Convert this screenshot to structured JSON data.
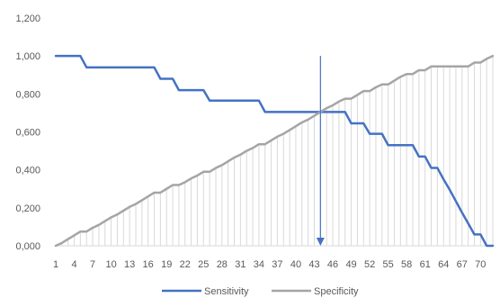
{
  "chart_data": {
    "type": "line",
    "title": "",
    "xlabel": "",
    "ylabel": "",
    "ylim": [
      0,
      1.2
    ],
    "y_ticks": [
      0,
      0.2,
      0.4,
      0.6,
      0.8,
      1.0,
      1.2
    ],
    "y_tick_labels": [
      "0,000",
      "0,200",
      "0,400",
      "0,600",
      "0,800",
      "1,000",
      "1,200"
    ],
    "x_ticks": [
      1,
      4,
      7,
      10,
      13,
      16,
      19,
      22,
      25,
      28,
      31,
      34,
      37,
      40,
      43,
      46,
      49,
      52,
      55,
      58,
      61,
      64,
      67,
      70
    ],
    "x_range": [
      1,
      72
    ],
    "grid": "vertical drop lines at every category",
    "legend": "bottom",
    "marker": {
      "x": 44,
      "label": ""
    },
    "colors": {
      "sensitivity": "#4472C4",
      "specificity": "#A5A5A5",
      "marker": "#4472C4",
      "droplines": "#D9D9D9"
    },
    "series": [
      {
        "name": "Sensitivity",
        "points": [
          [
            1,
            1.0
          ],
          [
            5,
            1.0
          ],
          [
            6,
            0.94
          ],
          [
            17,
            0.94
          ],
          [
            18,
            0.88
          ],
          [
            20,
            0.88
          ],
          [
            21,
            0.82
          ],
          [
            25,
            0.82
          ],
          [
            26,
            0.765
          ],
          [
            34,
            0.765
          ],
          [
            35,
            0.705
          ],
          [
            48,
            0.705
          ],
          [
            49,
            0.645
          ],
          [
            51,
            0.645
          ],
          [
            52,
            0.59
          ],
          [
            54,
            0.59
          ],
          [
            55,
            0.53
          ],
          [
            59,
            0.53
          ],
          [
            60,
            0.47
          ],
          [
            61,
            0.47
          ],
          [
            62,
            0.41
          ],
          [
            63,
            0.41
          ],
          [
            64,
            0.35
          ],
          [
            65,
            0.295
          ],
          [
            66,
            0.235
          ],
          [
            67,
            0.175
          ],
          [
            68,
            0.118
          ],
          [
            69,
            0.06
          ],
          [
            70,
            0.06
          ],
          [
            71,
            0.0
          ],
          [
            72,
            0.0
          ]
        ]
      },
      {
        "name": "Specificity",
        "points": [
          [
            1,
            0.0
          ],
          [
            2,
            0.015
          ],
          [
            3,
            0.035
          ],
          [
            4,
            0.055
          ],
          [
            5,
            0.075
          ],
          [
            6,
            0.075
          ],
          [
            7,
            0.095
          ],
          [
            8,
            0.11
          ],
          [
            9,
            0.13
          ],
          [
            10,
            0.15
          ],
          [
            11,
            0.165
          ],
          [
            12,
            0.185
          ],
          [
            13,
            0.205
          ],
          [
            14,
            0.22
          ],
          [
            15,
            0.24
          ],
          [
            16,
            0.26
          ],
          [
            17,
            0.28
          ],
          [
            18,
            0.28
          ],
          [
            19,
            0.3
          ],
          [
            20,
            0.32
          ],
          [
            21,
            0.32
          ],
          [
            22,
            0.335
          ],
          [
            23,
            0.355
          ],
          [
            24,
            0.37
          ],
          [
            25,
            0.39
          ],
          [
            26,
            0.39
          ],
          [
            27,
            0.41
          ],
          [
            28,
            0.425
          ],
          [
            29,
            0.445
          ],
          [
            30,
            0.465
          ],
          [
            31,
            0.48
          ],
          [
            32,
            0.5
          ],
          [
            33,
            0.515
          ],
          [
            34,
            0.535
          ],
          [
            35,
            0.535
          ],
          [
            36,
            0.555
          ],
          [
            37,
            0.575
          ],
          [
            38,
            0.59
          ],
          [
            39,
            0.61
          ],
          [
            40,
            0.63
          ],
          [
            41,
            0.65
          ],
          [
            42,
            0.665
          ],
          [
            43,
            0.685
          ],
          [
            44,
            0.705
          ],
          [
            45,
            0.725
          ],
          [
            46,
            0.74
          ],
          [
            47,
            0.76
          ],
          [
            48,
            0.775
          ],
          [
            49,
            0.775
          ],
          [
            50,
            0.795
          ],
          [
            51,
            0.815
          ],
          [
            52,
            0.815
          ],
          [
            53,
            0.835
          ],
          [
            54,
            0.85
          ],
          [
            55,
            0.85
          ],
          [
            56,
            0.87
          ],
          [
            57,
            0.89
          ],
          [
            58,
            0.905
          ],
          [
            59,
            0.905
          ],
          [
            60,
            0.925
          ],
          [
            61,
            0.925
          ],
          [
            62,
            0.945
          ],
          [
            63,
            0.945
          ],
          [
            64,
            0.945
          ],
          [
            65,
            0.945
          ],
          [
            66,
            0.945
          ],
          [
            67,
            0.945
          ],
          [
            68,
            0.945
          ],
          [
            69,
            0.965
          ],
          [
            70,
            0.965
          ],
          [
            71,
            0.985
          ],
          [
            72,
            1.0
          ]
        ]
      }
    ]
  }
}
